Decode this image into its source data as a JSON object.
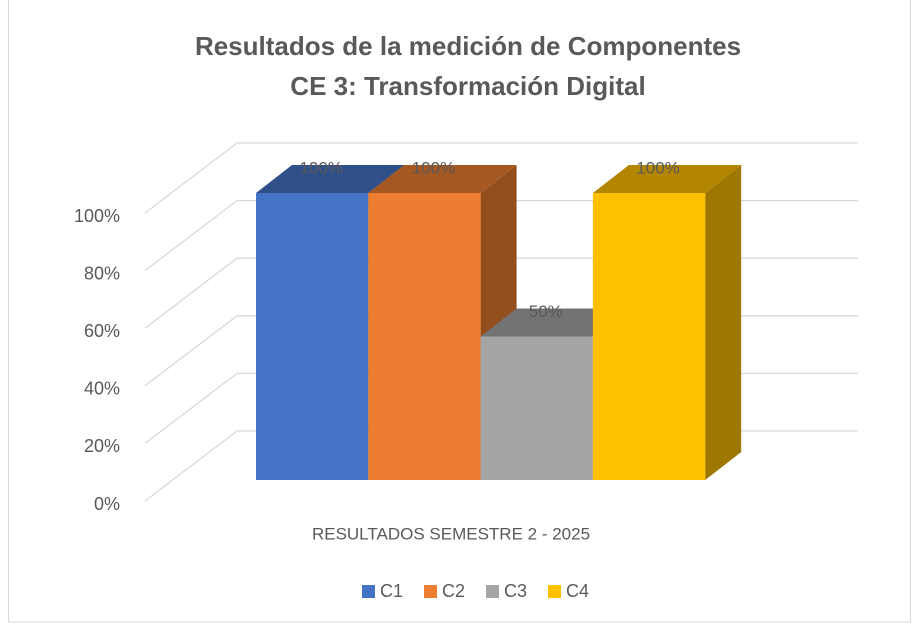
{
  "chart_data": {
    "type": "bar3d",
    "title": "Resultados de la medición de Componentes",
    "subtitle": "CE 3: Transformación Digital",
    "categories": [
      "RESULTADOS SEMESTRE 2 - 2025"
    ],
    "series": [
      {
        "name": "C1",
        "color": "#4472c4",
        "values": [
          100
        ],
        "value_labels": [
          "100%"
        ]
      },
      {
        "name": "C2",
        "color": "#ed7d31",
        "values": [
          100
        ],
        "value_labels": [
          "100%"
        ]
      },
      {
        "name": "C3",
        "color": "#a5a5a5",
        "values": [
          50
        ],
        "value_labels": [
          "50%"
        ]
      },
      {
        "name": "C4",
        "color": "#ffc000",
        "values": [
          100
        ],
        "value_labels": [
          "100%"
        ]
      }
    ],
    "ylim": [
      0,
      100
    ],
    "yticks": [
      {
        "value": 0,
        "label": "0%"
      },
      {
        "value": 20,
        "label": "20%"
      },
      {
        "value": 40,
        "label": "40%"
      },
      {
        "value": 60,
        "label": "60%"
      },
      {
        "value": 80,
        "label": "80%"
      },
      {
        "value": 100,
        "label": "100%"
      }
    ],
    "grid": true,
    "legend": "bottom"
  }
}
